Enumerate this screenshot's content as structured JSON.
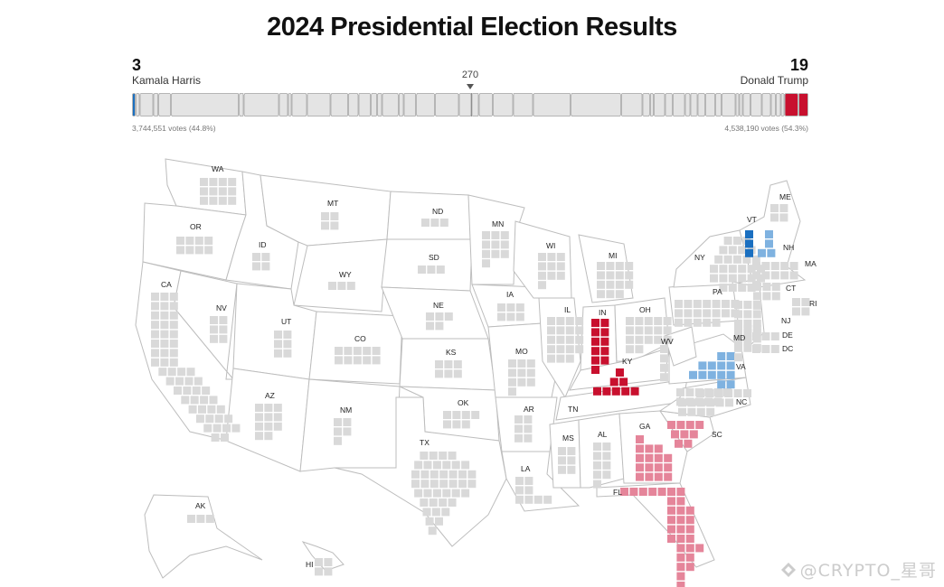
{
  "title": "2024 Presidential Election Results",
  "threshold_label": "270",
  "harris": {
    "name": "Kamala Harris",
    "electoral_votes": "3",
    "popular_votes": "3,744,551 votes (44.8%)",
    "color": "#1f6fb4"
  },
  "trump": {
    "name": "Donald Trump",
    "electoral_votes": "19",
    "popular_votes": "4,538,190 votes (54.3%)",
    "color": "#c8102e"
  },
  "colors": {
    "dem_called": "#1a6fc0",
    "dem_leaning": "#7fb2e0",
    "rep_called": "#c8102e",
    "rep_leaning": "#e5859a",
    "uncalled": "#d9d9d9"
  },
  "states": [
    {
      "abbr": "WA",
      "ev": 12,
      "status": "uncalled"
    },
    {
      "abbr": "OR",
      "ev": 8,
      "status": "uncalled"
    },
    {
      "abbr": "CA",
      "ev": 54,
      "status": "uncalled"
    },
    {
      "abbr": "NV",
      "ev": 6,
      "status": "uncalled"
    },
    {
      "abbr": "ID",
      "ev": 4,
      "status": "uncalled"
    },
    {
      "abbr": "MT",
      "ev": 4,
      "status": "uncalled"
    },
    {
      "abbr": "WY",
      "ev": 3,
      "status": "uncalled"
    },
    {
      "abbr": "UT",
      "ev": 6,
      "status": "uncalled"
    },
    {
      "abbr": "CO",
      "ev": 10,
      "status": "uncalled"
    },
    {
      "abbr": "AZ",
      "ev": 11,
      "status": "uncalled"
    },
    {
      "abbr": "NM",
      "ev": 5,
      "status": "uncalled"
    },
    {
      "abbr": "ND",
      "ev": 3,
      "status": "uncalled"
    },
    {
      "abbr": "SD",
      "ev": 3,
      "status": "uncalled"
    },
    {
      "abbr": "NE",
      "ev": 5,
      "status": "uncalled"
    },
    {
      "abbr": "KS",
      "ev": 6,
      "status": "uncalled"
    },
    {
      "abbr": "OK",
      "ev": 7,
      "status": "uncalled"
    },
    {
      "abbr": "TX",
      "ev": 40,
      "status": "uncalled"
    },
    {
      "abbr": "MN",
      "ev": 10,
      "status": "uncalled"
    },
    {
      "abbr": "IA",
      "ev": 6,
      "status": "uncalled"
    },
    {
      "abbr": "MO",
      "ev": 10,
      "status": "uncalled"
    },
    {
      "abbr": "AR",
      "ev": 6,
      "status": "uncalled"
    },
    {
      "abbr": "LA",
      "ev": 8,
      "status": "uncalled"
    },
    {
      "abbr": "WI",
      "ev": 10,
      "status": "uncalled"
    },
    {
      "abbr": "IL",
      "ev": 19,
      "status": "uncalled"
    },
    {
      "abbr": "MI",
      "ev": 15,
      "status": "uncalled"
    },
    {
      "abbr": "IN",
      "ev": 11,
      "status": "rep_called"
    },
    {
      "abbr": "KY",
      "ev": 8,
      "status": "rep_called"
    },
    {
      "abbr": "OH",
      "ev": 17,
      "status": "uncalled"
    },
    {
      "abbr": "TN",
      "ev": 11,
      "status": "uncalled"
    },
    {
      "abbr": "MS",
      "ev": 6,
      "status": "uncalled"
    },
    {
      "abbr": "AL",
      "ev": 9,
      "status": "uncalled"
    },
    {
      "abbr": "GA",
      "ev": 16,
      "status": "rep_leaning"
    },
    {
      "abbr": "FL",
      "ev": 30,
      "status": "rep_leaning"
    },
    {
      "abbr": "SC",
      "ev": 9,
      "status": "rep_leaning"
    },
    {
      "abbr": "NC",
      "ev": 16,
      "status": "uncalled"
    },
    {
      "abbr": "VA",
      "ev": 13,
      "status": "dem_leaning"
    },
    {
      "abbr": "WV",
      "ev": 4,
      "status": "uncalled"
    },
    {
      "abbr": "PA",
      "ev": 19,
      "status": "uncalled"
    },
    {
      "abbr": "NY",
      "ev": 28,
      "status": "uncalled"
    },
    {
      "abbr": "VT",
      "ev": 3,
      "status": "dem_called"
    },
    {
      "abbr": "NH",
      "ev": 4,
      "status": "dem_leaning"
    },
    {
      "abbr": "ME",
      "ev": 4,
      "status": "uncalled"
    },
    {
      "abbr": "MA",
      "ev": 11,
      "status": "uncalled"
    },
    {
      "abbr": "CT",
      "ev": 7,
      "status": "uncalled"
    },
    {
      "abbr": "RI",
      "ev": 4,
      "status": "uncalled"
    },
    {
      "abbr": "NJ",
      "ev": 14,
      "status": "uncalled"
    },
    {
      "abbr": "DE",
      "ev": 3,
      "status": "uncalled"
    },
    {
      "abbr": "MD",
      "ev": 10,
      "status": "uncalled"
    },
    {
      "abbr": "DC",
      "ev": 3,
      "status": "uncalled"
    },
    {
      "abbr": "AK",
      "ev": 3,
      "status": "uncalled"
    },
    {
      "abbr": "HI",
      "ev": 4,
      "status": "uncalled"
    }
  ],
  "watermark": "@CRYPTO_星哥"
}
